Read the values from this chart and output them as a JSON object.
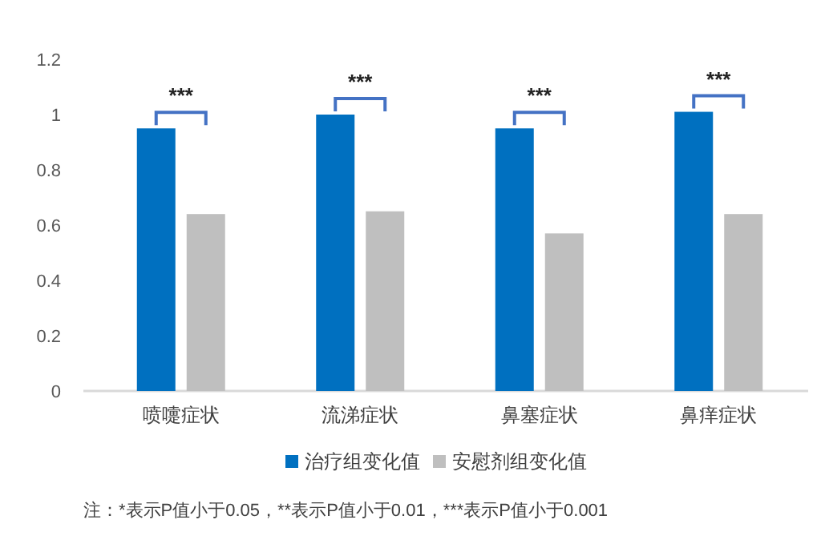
{
  "chart_data": {
    "type": "bar",
    "categories": [
      "喷嚏症状",
      "流涕症状",
      "鼻塞症状",
      "鼻痒症状"
    ],
    "series": [
      {
        "name": "治疗组变化值",
        "color": "#0070c0",
        "values": [
          0.95,
          1.0,
          0.95,
          1.01
        ]
      },
      {
        "name": "安慰剂组变化值",
        "color": "#bfbfbf",
        "values": [
          0.64,
          0.65,
          0.57,
          0.64
        ]
      }
    ],
    "ylim": [
      0,
      1.2
    ],
    "yticks": [
      0,
      {
        "value": 0.2,
        "label": "0.2"
      },
      {
        "value": 0.4,
        "label": "0.4"
      },
      {
        "value": 0.6,
        "label": "0.6"
      },
      {
        "value": 0.8,
        "label": "0.8"
      },
      1,
      {
        "value": 1.2,
        "label": "1.2"
      }
    ],
    "grid": false,
    "legend": "bottom",
    "annotations": [
      "***",
      "***",
      "***",
      "***",
      "注：*表示P值小于0.05，**表示P值小于0.01，***表示P值小于0.001"
    ]
  }
}
